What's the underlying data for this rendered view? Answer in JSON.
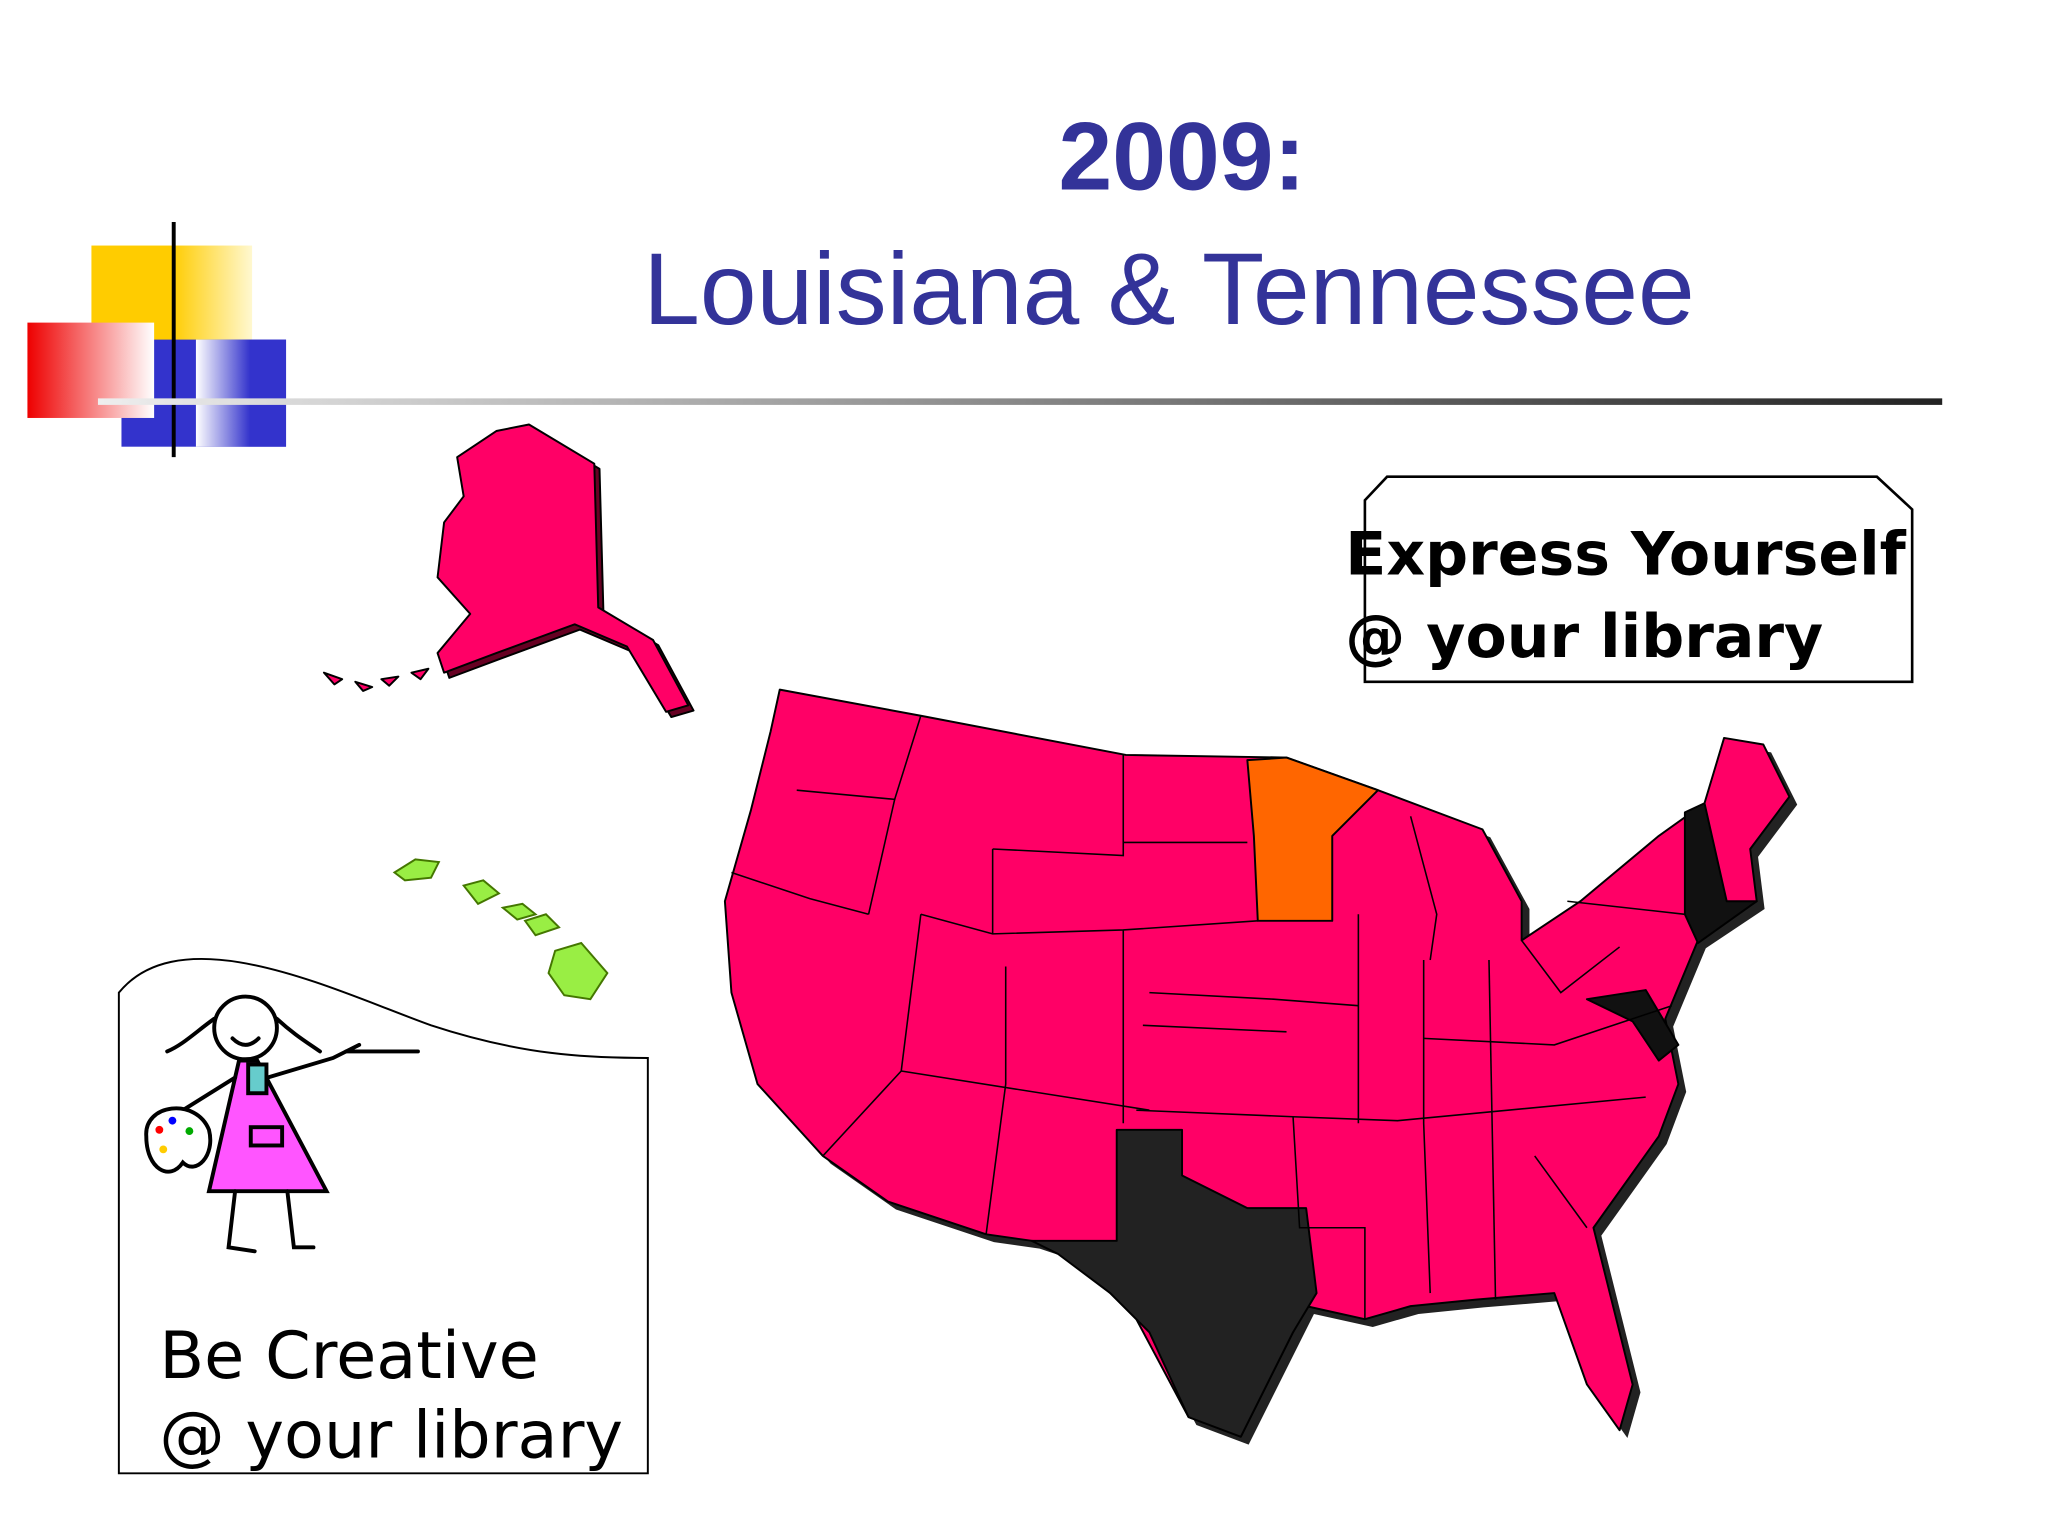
{
  "header": {
    "title": "2009:",
    "subtitle": "Louisiana & Tennessee"
  },
  "callouts": [
    {
      "lines": [
        "Express Yourself",
        "@ your library"
      ]
    },
    {
      "lines": [
        "Be Creative",
        "@ your library"
      ]
    }
  ]
}
